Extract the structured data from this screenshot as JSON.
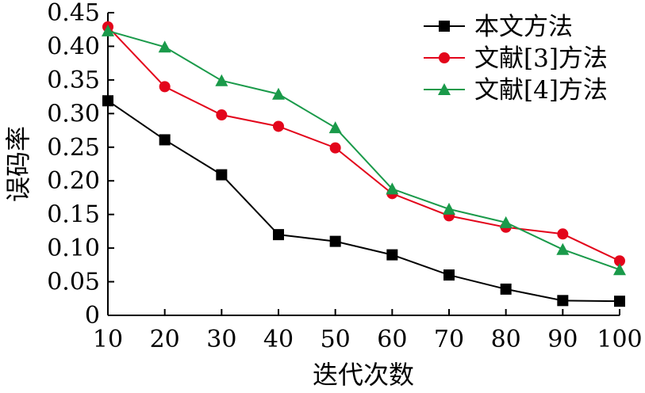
{
  "chart_data": {
    "type": "line",
    "xlabel": "迭代次数",
    "ylabel": "误码率",
    "x": [
      10,
      20,
      30,
      40,
      50,
      60,
      70,
      80,
      90,
      100
    ],
    "xlim": [
      10,
      100
    ],
    "ylim": [
      0,
      0.45
    ],
    "x_ticks": [
      "10",
      "20",
      "30",
      "40",
      "50",
      "60",
      "70",
      "80",
      "90",
      "100"
    ],
    "y_ticks": [
      "0",
      "0.05",
      "0.10",
      "0.15",
      "0.20",
      "0.25",
      "0.30",
      "0.35",
      "0.40",
      "0.45"
    ],
    "y_tick_values": [
      0,
      0.05,
      0.1,
      0.15,
      0.2,
      0.25,
      0.3,
      0.35,
      0.4,
      0.45
    ],
    "grid": false,
    "legend_position": "top-right",
    "series": [
      {
        "name": "本文方法",
        "color": "#000000",
        "marker": "square",
        "values": [
          0.319,
          0.261,
          0.209,
          0.12,
          0.11,
          0.09,
          0.06,
          0.039,
          0.022,
          0.021
        ]
      },
      {
        "name": "文献[3]方法",
        "color": "#e3051b",
        "marker": "circle",
        "values": [
          0.429,
          0.34,
          0.298,
          0.281,
          0.249,
          0.181,
          0.148,
          0.131,
          0.121,
          0.081
        ]
      },
      {
        "name": "文献[4]方法",
        "color": "#1a9a4a",
        "marker": "triangle",
        "values": [
          0.423,
          0.399,
          0.349,
          0.329,
          0.279,
          0.188,
          0.158,
          0.138,
          0.098,
          0.068
        ]
      }
    ]
  }
}
